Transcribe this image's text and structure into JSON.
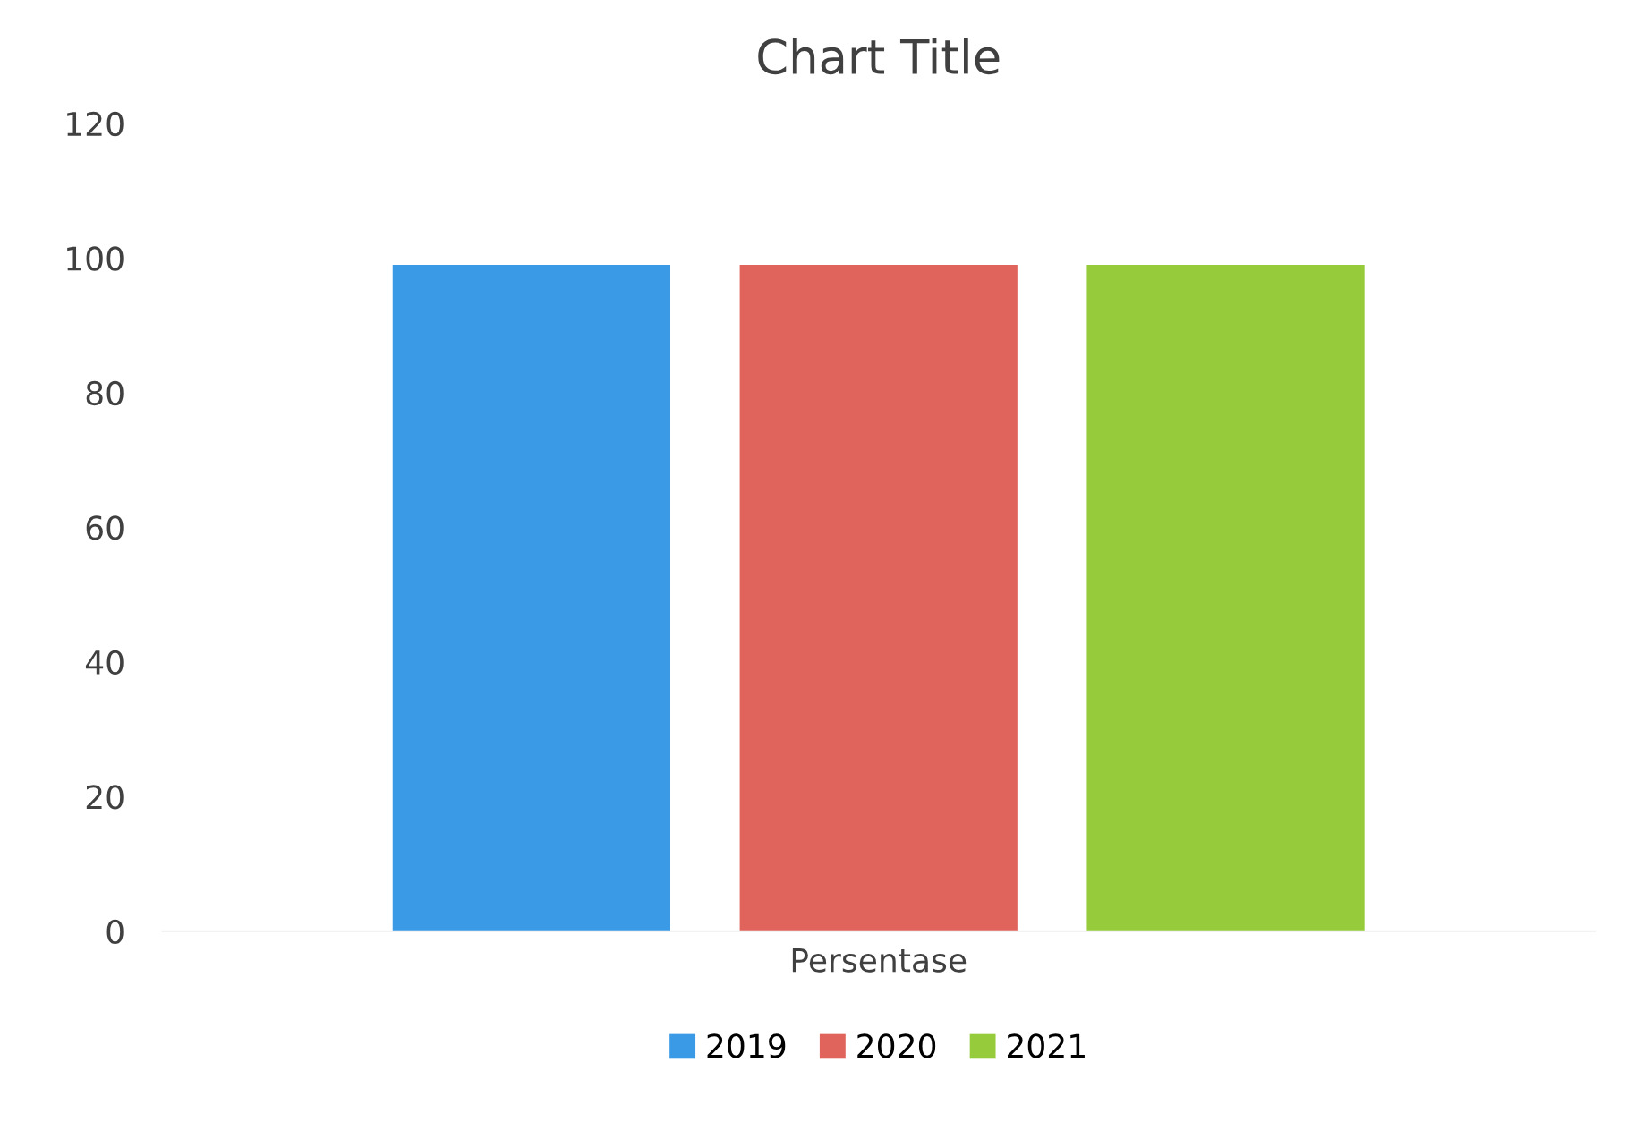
{
  "chart_data": {
    "type": "bar",
    "title": "Chart Title",
    "categories": [
      "Persentase"
    ],
    "series": [
      {
        "name": "2019",
        "color": "#3a9ae6",
        "values": [
          99
        ]
      },
      {
        "name": "2020",
        "color": "#e0645c",
        "values": [
          99
        ]
      },
      {
        "name": "2021",
        "color": "#96cc3c",
        "values": [
          99
        ]
      }
    ],
    "ylim": [
      0,
      120
    ],
    "yticks": [
      0,
      20,
      40,
      60,
      80,
      100,
      120
    ],
    "grid": false,
    "legend": "bottom"
  }
}
